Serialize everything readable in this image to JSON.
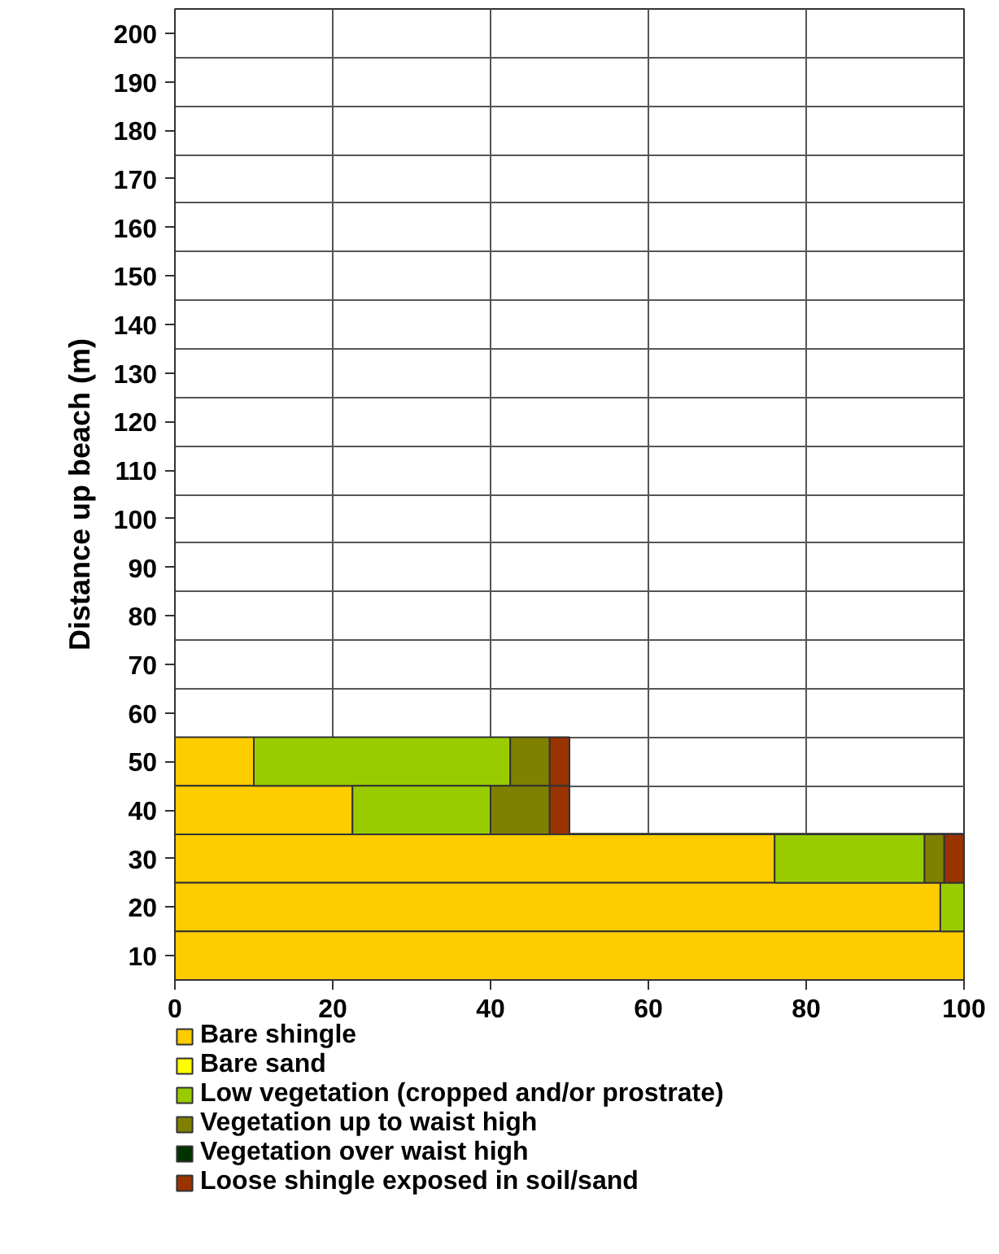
{
  "chart_data": {
    "type": "bar",
    "orientation": "horizontal",
    "stacked": true,
    "ylabel": "Distance up beach (m)",
    "categories": [
      "200",
      "190",
      "180",
      "170",
      "160",
      "150",
      "140",
      "130",
      "120",
      "110",
      "100",
      "90",
      "80",
      "70",
      "60",
      "50",
      "40",
      "30",
      "20",
      "10"
    ],
    "series": [
      {
        "name": "Bare shingle",
        "color": "#ffcc00",
        "values": [
          null,
          null,
          null,
          null,
          null,
          null,
          null,
          null,
          null,
          null,
          null,
          null,
          null,
          null,
          null,
          10,
          22.5,
          76,
          97,
          100
        ]
      },
      {
        "name": "Bare sand",
        "color": "#ffff00",
        "values": [
          null,
          null,
          null,
          null,
          null,
          null,
          null,
          null,
          null,
          null,
          null,
          null,
          null,
          null,
          null,
          0,
          0,
          0,
          0,
          0
        ]
      },
      {
        "name": "Low vegetation (cropped and/or prostrate)",
        "color": "#99cc00",
        "values": [
          null,
          null,
          null,
          null,
          null,
          null,
          null,
          null,
          null,
          null,
          null,
          null,
          null,
          null,
          null,
          32.5,
          17.5,
          19,
          3,
          0
        ]
      },
      {
        "name": "Vegetation up to waist high",
        "color": "#808000",
        "values": [
          null,
          null,
          null,
          null,
          null,
          null,
          null,
          null,
          null,
          null,
          null,
          null,
          null,
          null,
          null,
          5,
          7.5,
          2.5,
          0,
          0
        ]
      },
      {
        "name": "Vegetation over waist high",
        "color": "#003300",
        "values": [
          null,
          null,
          null,
          null,
          null,
          null,
          null,
          null,
          null,
          null,
          null,
          null,
          null,
          null,
          null,
          0,
          0,
          0,
          0,
          0
        ]
      },
      {
        "name": "Loose shingle exposed in soil/sand",
        "color": "#993300",
        "values": [
          null,
          null,
          null,
          null,
          null,
          null,
          null,
          null,
          null,
          null,
          null,
          null,
          null,
          null,
          null,
          2.5,
          2.5,
          2.5,
          0,
          0
        ]
      }
    ],
    "xlim": [
      0,
      100
    ],
    "xticks": [
      0,
      20,
      40,
      60,
      80,
      100
    ],
    "grid": true,
    "legend": "bottom"
  }
}
